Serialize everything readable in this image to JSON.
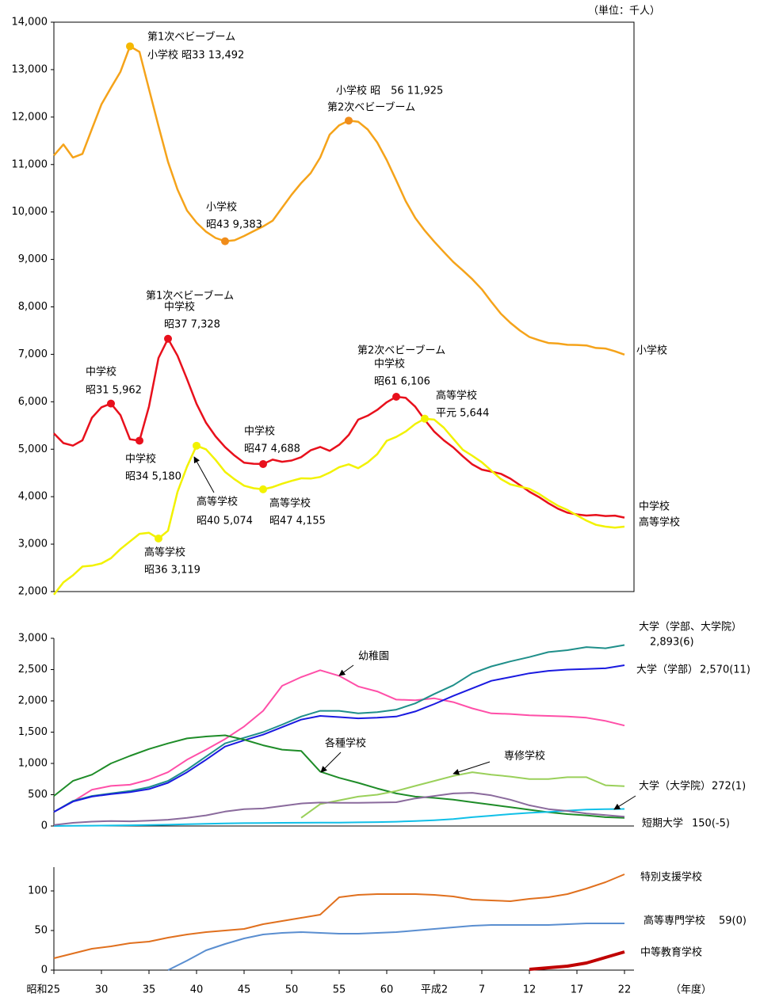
{
  "chart_data": [
    {
      "type": "line",
      "unit_label": "（単位：千人）",
      "xlim": [
        1950,
        2011
      ],
      "ylim": [
        2000,
        14000
      ],
      "yticks": [
        {
          "value": 2000,
          "label": "2,000"
        },
        {
          "value": 3000,
          "label": "3,000"
        },
        {
          "value": 4000,
          "label": "4,000"
        },
        {
          "value": 5000,
          "label": "5,000"
        },
        {
          "value": 6000,
          "label": "6,000"
        },
        {
          "value": 7000,
          "label": "7,000"
        },
        {
          "value": 8000,
          "label": "8,000"
        },
        {
          "value": 9000,
          "label": "9,000"
        },
        {
          "value": 10000,
          "label": "10,000"
        },
        {
          "value": 11000,
          "label": "11,000"
        },
        {
          "value": 12000,
          "label": "12,000"
        },
        {
          "value": 13000,
          "label": "13,000"
        },
        {
          "value": 14000,
          "label": "14,000"
        }
      ],
      "x": [
        1950,
        1951,
        1952,
        1953,
        1954,
        1955,
        1956,
        1957,
        1958,
        1959,
        1960,
        1961,
        1962,
        1963,
        1964,
        1965,
        1966,
        1967,
        1968,
        1969,
        1970,
        1971,
        1972,
        1973,
        1974,
        1975,
        1976,
        1977,
        1978,
        1979,
        1980,
        1981,
        1982,
        1983,
        1984,
        1985,
        1986,
        1987,
        1988,
        1989,
        1990,
        1991,
        1992,
        1993,
        1994,
        1995,
        1996,
        1997,
        1998,
        1999,
        2000,
        2001,
        2002,
        2003,
        2004,
        2005,
        2006,
        2007,
        2008,
        2009,
        2010
      ],
      "series": [
        {
          "name": "小学校",
          "color": "#f5a31a",
          "values": [
            11191,
            11423,
            11148,
            11225,
            11750,
            12267,
            12616,
            12956,
            13492,
            13374,
            12590,
            11811,
            11057,
            10471,
            10030,
            9776,
            9584,
            9452,
            9383,
            9403,
            9493,
            9596,
            9696,
            9816,
            10089,
            10365,
            10609,
            10819,
            11146,
            11630,
            11827,
            11925,
            11902,
            11739,
            11465,
            11095,
            10665,
            10227,
            9872,
            9607,
            9373,
            9157,
            8947,
            8769,
            8582,
            8370,
            8106,
            7856,
            7664,
            7501,
            7366,
            7297,
            7239,
            7227,
            7201,
            7197,
            7188,
            7133,
            7122,
            7064,
            6993
          ]
        },
        {
          "name": "中学校",
          "color": "#e8101c",
          "values": [
            5333,
            5129,
            5076,
            5187,
            5664,
            5884,
            5962,
            5719,
            5210,
            5180,
            5900,
            6924,
            7328,
            6971,
            6476,
            5957,
            5556,
            5271,
            5044,
            4865,
            4717,
            4694,
            4688,
            4780,
            4735,
            4762,
            4833,
            4977,
            5048,
            4966,
            5094,
            5300,
            5624,
            5706,
            5828,
            5990,
            6106,
            6082,
            5896,
            5619,
            5369,
            5188,
            5037,
            4850,
            4681,
            4570,
            4528,
            4481,
            4380,
            4244,
            4104,
            3992,
            3863,
            3748,
            3663,
            3626,
            3602,
            3615,
            3592,
            3600,
            3558
          ]
        },
        {
          "name": "高等学校",
          "color": "#f2f200",
          "values": [
            1935,
            2193,
            2342,
            2528,
            2545,
            2592,
            2703,
            2897,
            3057,
            3216,
            3239,
            3119,
            3282,
            4102,
            4634,
            5074,
            4997,
            4776,
            4522,
            4366,
            4232,
            4178,
            4155,
            4201,
            4273,
            4333,
            4386,
            4381,
            4415,
            4507,
            4622,
            4682,
            4601,
            4723,
            4896,
            5178,
            5259,
            5375,
            5534,
            5644,
            5623,
            5455,
            5219,
            4989,
            4863,
            4725,
            4548,
            4372,
            4259,
            4212,
            4166,
            4062,
            3929,
            3810,
            3720,
            3605,
            3495,
            3407,
            3368,
            3348,
            3369
          ]
        }
      ],
      "annotations": [
        {
          "lines": [
            "第1次ベビーブーム",
            "小学校 昭33 13,492"
          ],
          "x": 1958,
          "y": 13492,
          "color": "#f5b800"
        },
        {
          "lines": [
            "小学校",
            "昭43 9,383"
          ],
          "x": 1968,
          "y": 9383,
          "color": "#f08c1a"
        },
        {
          "lines": [
            "小学校 昭　56 11,925",
            "第2次ベビーブーム"
          ],
          "x": 1981,
          "y": 11925,
          "color": "#f08c1a"
        },
        {
          "lines": [
            "第1次ベビーブーム",
            "中学校",
            "昭37 7,328"
          ],
          "x": 1962,
          "y": 7328,
          "color": "#e8101c"
        },
        {
          "lines": [
            "中学校",
            "昭31 5,962"
          ],
          "x": 1956,
          "y": 5962,
          "color": "#e8101c"
        },
        {
          "lines": [
            "中学校",
            "昭34 5,180"
          ],
          "x": 1959,
          "y": 5180,
          "color": "#e8101c"
        },
        {
          "lines": [
            "中学校",
            "昭47 4,688"
          ],
          "x": 1972,
          "y": 4688,
          "color": "#e8101c"
        },
        {
          "lines": [
            "第2次ベビーブーム",
            "中学校",
            "昭61 6,106"
          ],
          "x": 1986,
          "y": 6106,
          "color": "#e8101c"
        },
        {
          "lines": [
            "高等学校",
            "平元 5,644"
          ],
          "x": 1989,
          "y": 5644,
          "color": "#f2f200"
        },
        {
          "lines": [
            "高等学校",
            "昭40 5,074"
          ],
          "x": 1965,
          "y": 5074,
          "color": "#f2f200"
        },
        {
          "lines": [
            "高等学校",
            "昭47 4,155"
          ],
          "x": 1972,
          "y": 4155,
          "color": "#f2f200"
        },
        {
          "lines": [
            "高等学校",
            "昭36 3,119"
          ],
          "x": 1961,
          "y": 3119,
          "color": "#f2f200"
        }
      ]
    },
    {
      "type": "line",
      "xlim": [
        1950,
        2011
      ],
      "ylim": [
        0,
        3000
      ],
      "yticks": [
        0,
        500,
        {
          "value": 1000,
          "label": "1,000"
        },
        {
          "value": 1500,
          "label": "1,500"
        },
        {
          "value": 2000,
          "label": "2,000"
        },
        {
          "value": 2500,
          "label": "2,500"
        },
        {
          "value": 3000,
          "label": "3,000"
        }
      ],
      "x": [
        1950,
        1952,
        1954,
        1956,
        1958,
        1960,
        1962,
        1964,
        1966,
        1968,
        1970,
        1972,
        1974,
        1976,
        1978,
        1980,
        1982,
        1984,
        1986,
        1988,
        1990,
        1992,
        1994,
        1996,
        1998,
        2000,
        2002,
        2004,
        2006,
        2008,
        2010
      ],
      "series": [
        {
          "name": "幼稚園",
          "color": "#ff4fa8",
          "values": [
            225,
            390,
            580,
            640,
            660,
            740,
            860,
            1060,
            1220,
            1390,
            1590,
            1840,
            2240,
            2380,
            2490,
            2400,
            2230,
            2150,
            2020,
            2010,
            2040,
            1980,
            1880,
            1800,
            1790,
            1770,
            1760,
            1750,
            1730,
            1680,
            1605
          ]
        },
        {
          "name": "大学（学部、大学院）",
          "end_label": "2,893(6)",
          "color": "#1f8f8a",
          "values": [
            225,
            400,
            480,
            520,
            560,
            620,
            720,
            900,
            1110,
            1320,
            1410,
            1500,
            1620,
            1750,
            1840,
            1840,
            1800,
            1820,
            1860,
            1960,
            2110,
            2250,
            2440,
            2550,
            2630,
            2700,
            2780,
            2810,
            2860,
            2840,
            2893
          ]
        },
        {
          "name": "大学（学部）",
          "end_label": "2,570(11)",
          "color": "#1a1ae0",
          "values": [
            225,
            390,
            470,
            510,
            540,
            590,
            690,
            860,
            1060,
            1270,
            1370,
            1460,
            1580,
            1700,
            1760,
            1740,
            1720,
            1730,
            1750,
            1830,
            1950,
            2080,
            2200,
            2320,
            2380,
            2440,
            2480,
            2500,
            2510,
            2520,
            2570
          ]
        },
        {
          "name": "各種学校",
          "color": "#1e8c28",
          "values": [
            480,
            720,
            820,
            1000,
            1120,
            1230,
            1320,
            1400,
            1430,
            1450,
            1380,
            1290,
            1220,
            1200,
            870,
            770,
            690,
            600,
            520,
            470,
            450,
            420,
            380,
            340,
            300,
            260,
            220,
            190,
            170,
            140,
            130
          ]
        },
        {
          "name": "専修学校",
          "color": "#9ad05a",
          "values": [
            null,
            null,
            null,
            null,
            null,
            null,
            null,
            null,
            null,
            null,
            null,
            null,
            null,
            130,
            350,
            410,
            470,
            500,
            560,
            640,
            720,
            800,
            860,
            820,
            790,
            750,
            750,
            780,
            780,
            650,
            637
          ]
        },
        {
          "name": "大学（大学院）",
          "end_label": "272(1)",
          "color": "#10c0e8",
          "values": [
            0,
            2,
            5,
            8,
            12,
            16,
            20,
            28,
            35,
            40,
            45,
            48,
            50,
            52,
            54,
            55,
            58,
            62,
            68,
            80,
            92,
            110,
            140,
            165,
            190,
            210,
            225,
            245,
            262,
            270,
            272
          ]
        },
        {
          "name": "短期大学",
          "end_label": "150(-5)",
          "color": "#8a6a9c",
          "values": [
            15,
            50,
            70,
            80,
            75,
            85,
            100,
            130,
            170,
            230,
            270,
            280,
            320,
            360,
            375,
            370,
            370,
            375,
            380,
            440,
            480,
            520,
            530,
            490,
            420,
            330,
            270,
            240,
            200,
            175,
            150
          ]
        }
      ]
    },
    {
      "type": "line",
      "xlabel": "（年度）",
      "xlim": [
        1950,
        2011
      ],
      "ylim": [
        0,
        130
      ],
      "yticks": [
        0,
        50,
        100
      ],
      "xticks": [
        {
          "value": 1950,
          "label": "昭和25"
        },
        {
          "value": 1955,
          "label": "30"
        },
        {
          "value": 1960,
          "label": "35"
        },
        {
          "value": 1965,
          "label": "40"
        },
        {
          "value": 1970,
          "label": "45"
        },
        {
          "value": 1975,
          "label": "50"
        },
        {
          "value": 1980,
          "label": "55"
        },
        {
          "value": 1985,
          "label": "60"
        },
        {
          "value": 1990,
          "label": "平成2"
        },
        {
          "value": 1995,
          "label": "7"
        },
        {
          "value": 2000,
          "label": "12"
        },
        {
          "value": 2005,
          "label": "17"
        },
        {
          "value": 2010,
          "label": "22"
        }
      ],
      "x": [
        1950,
        1952,
        1954,
        1956,
        1958,
        1960,
        1962,
        1964,
        1966,
        1968,
        1970,
        1972,
        1974,
        1976,
        1978,
        1980,
        1982,
        1984,
        1986,
        1988,
        1990,
        1992,
        1994,
        1996,
        1998,
        2000,
        2002,
        2004,
        2006,
        2008,
        2010
      ],
      "series": [
        {
          "name": "特別支援学校",
          "color": "#e0701e",
          "values": [
            15,
            21,
            27,
            30,
            34,
            36,
            41,
            45,
            48,
            50,
            52,
            58,
            62,
            66,
            70,
            92,
            95,
            96,
            96,
            96,
            95,
            93,
            89,
            88,
            87,
            90,
            92,
            96,
            103,
            111,
            121
          ]
        },
        {
          "name": "高等専門学校",
          "end_label": "59(0)",
          "color": "#5a8ed0",
          "values": [
            null,
            null,
            null,
            null,
            null,
            null,
            0,
            12,
            25,
            33,
            40,
            45,
            47,
            48,
            47,
            46,
            46,
            47,
            48,
            50,
            52,
            54,
            56,
            57,
            57,
            57,
            57,
            58,
            59,
            59,
            59
          ]
        },
        {
          "name": "中等教育学校",
          "color": "#c00000",
          "values": [
            null,
            null,
            null,
            null,
            null,
            null,
            null,
            null,
            null,
            null,
            null,
            null,
            null,
            null,
            null,
            null,
            null,
            null,
            null,
            null,
            null,
            null,
            null,
            null,
            null,
            1,
            3,
            5,
            9,
            16,
            23
          ]
        }
      ]
    }
  ]
}
